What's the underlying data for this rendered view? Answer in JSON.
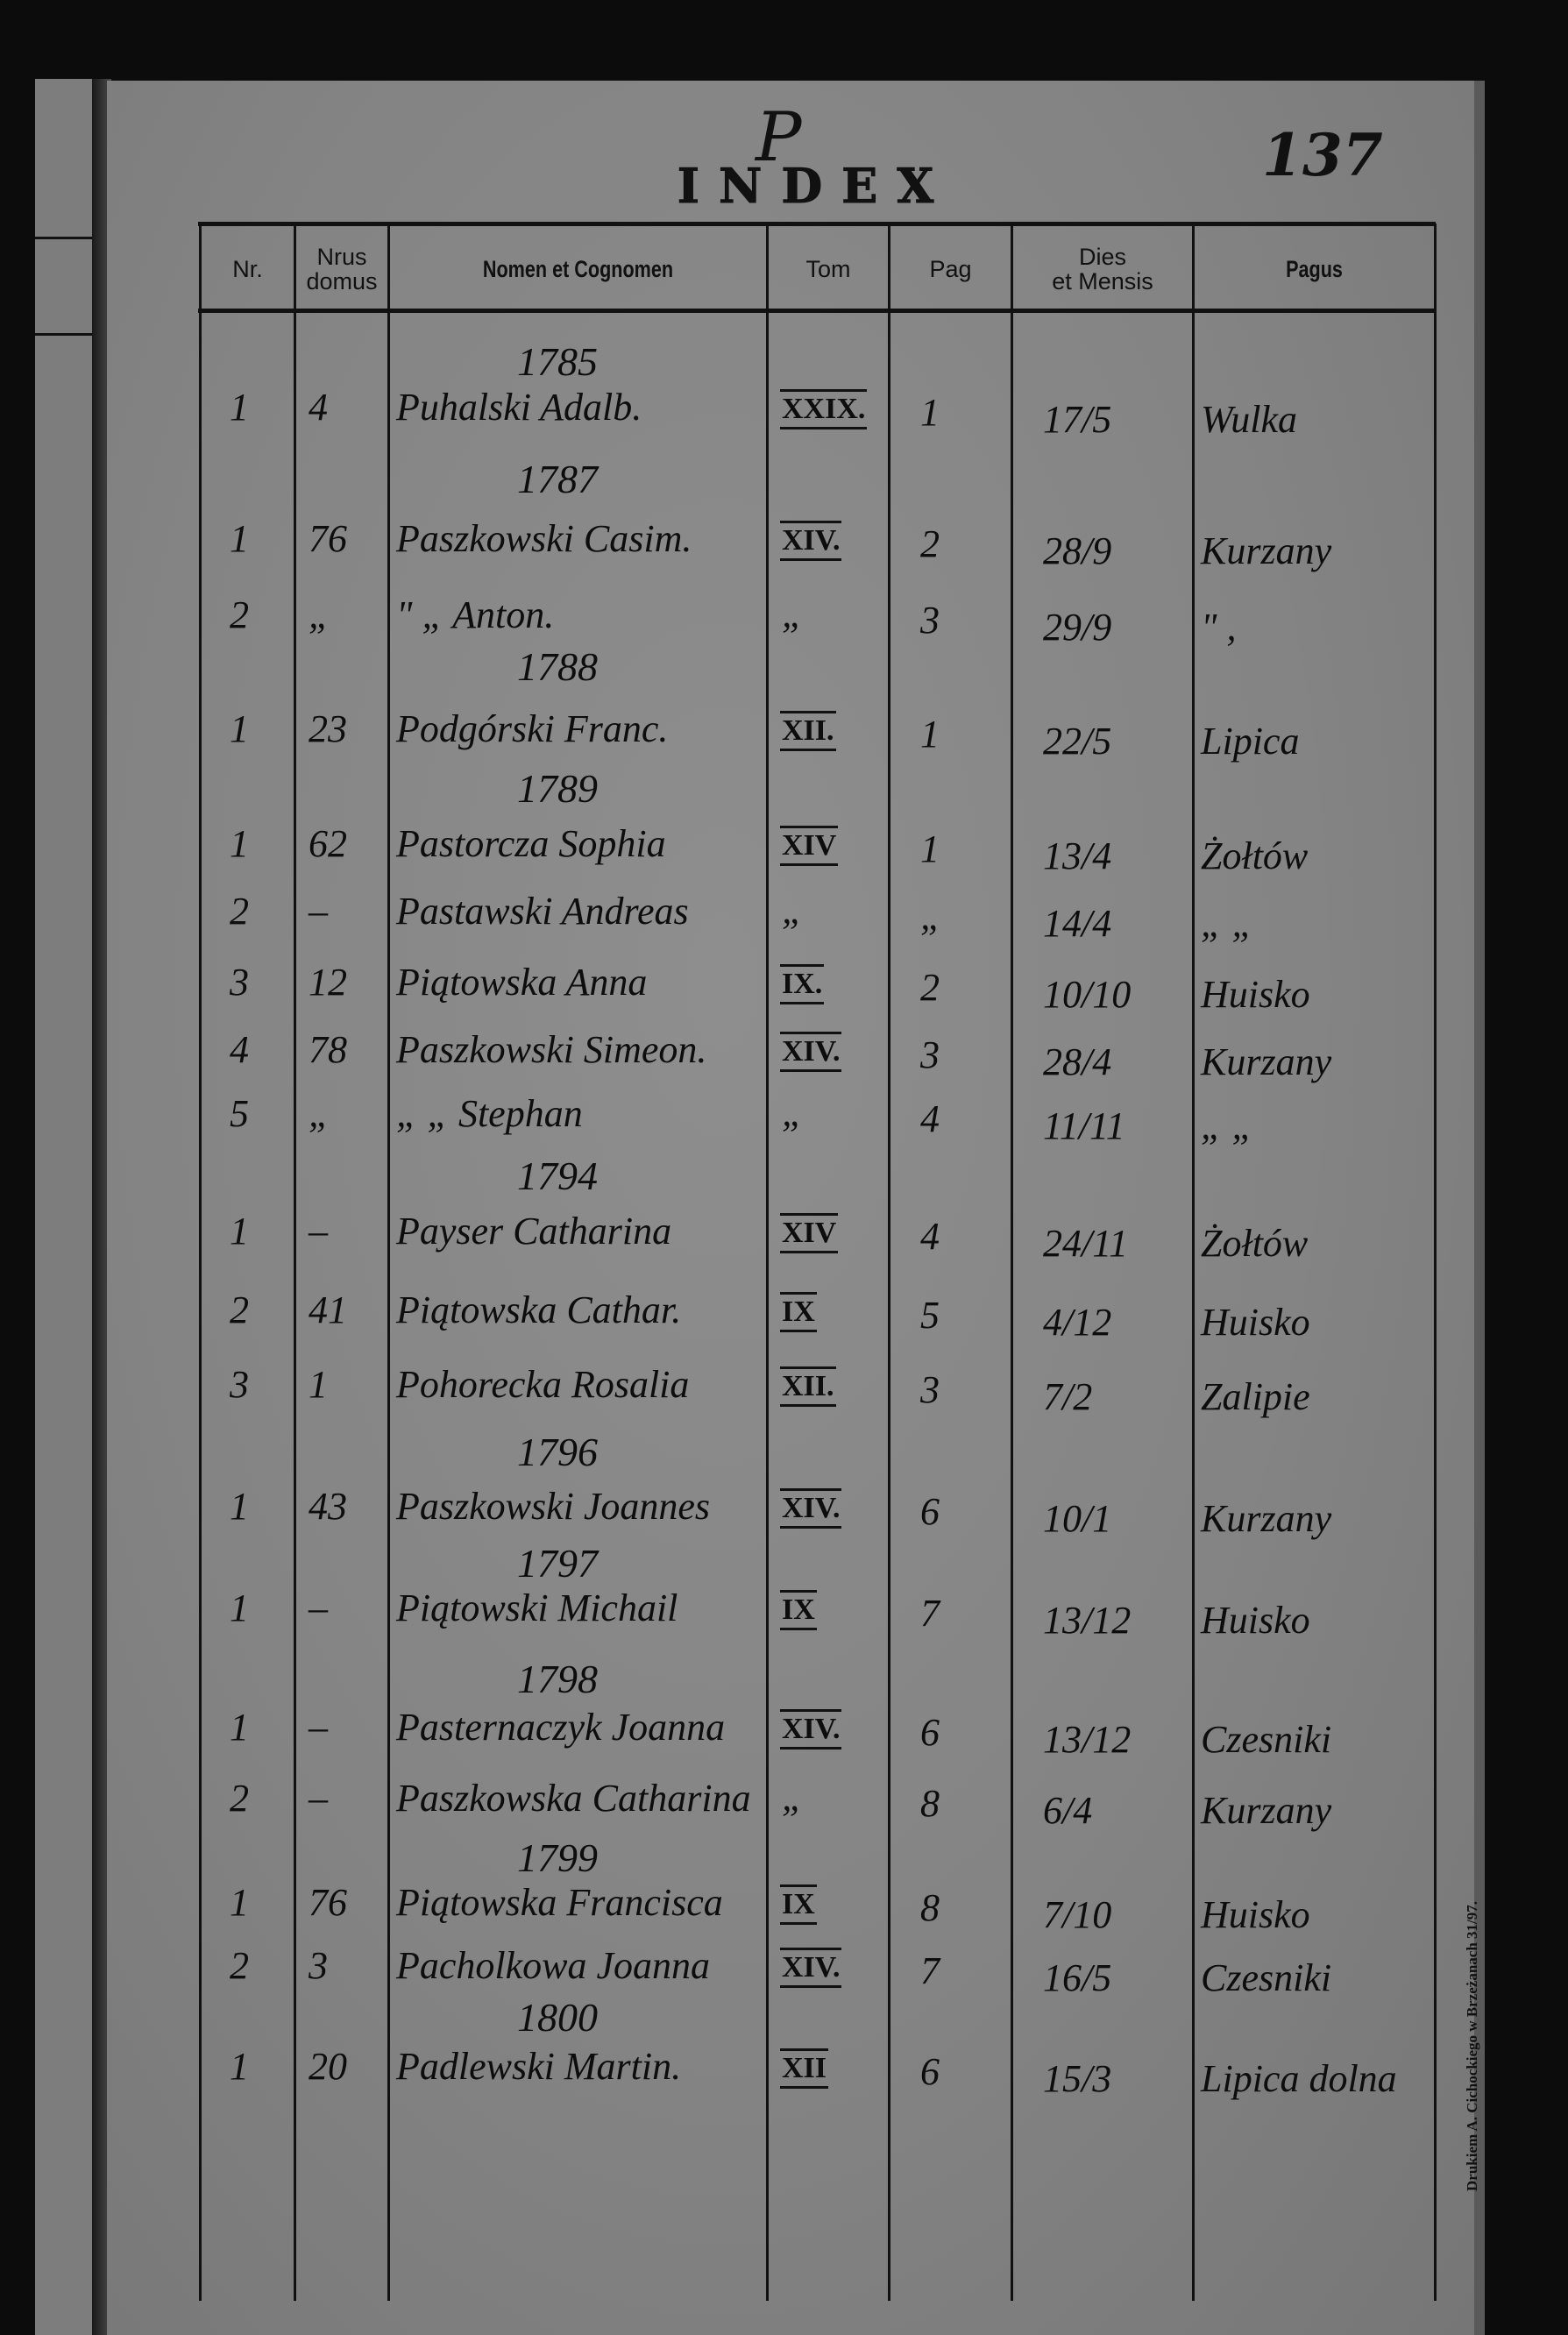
{
  "document": {
    "letter": "P",
    "title": "INDEX",
    "page_number": "137",
    "imprint": "Drukiem A. Cichockiego w Brzeżanach 31/97.",
    "ink_color": "#111111",
    "paper_color": "#858585"
  },
  "headers": {
    "nr": "Nr.",
    "domus_1": "Nrus",
    "domus_2": "domus",
    "nomen": "Nomen et Cognomen",
    "tom": "Tom",
    "pag": "Pag",
    "dies_1": "Dies",
    "dies_2": "et Mensis",
    "pagus": "Pagus"
  },
  "groups": [
    {
      "year": "1785",
      "entries": [
        {
          "nr": "1",
          "domus": "4",
          "name": "Puhalski Adalb.",
          "tom": "XXIX.",
          "pag": "1",
          "dies": "17/5",
          "pagus": "Wulka"
        }
      ]
    },
    {
      "year": "1787",
      "entries": [
        {
          "nr": "1",
          "domus": "76",
          "name": "Paszkowski Casim.",
          "tom": "XIV.",
          "pag": "2",
          "dies": "28/9",
          "pagus": "Kurzany"
        },
        {
          "nr": "2",
          "domus": "„",
          "name": "\"    „   Anton.",
          "tom": "„",
          "pag": "3",
          "dies": "29/9",
          "pagus": "\"      ,"
        }
      ]
    },
    {
      "year": "1788",
      "entries": [
        {
          "nr": "1",
          "domus": "23",
          "name": "Podgórski Franc.",
          "tom": "XII.",
          "pag": "1",
          "dies": "22/5",
          "pagus": "Lipica"
        }
      ]
    },
    {
      "year": "1789",
      "entries": [
        {
          "nr": "1",
          "domus": "62",
          "name": "Pastorcza Sophia",
          "tom": "XIV",
          "pag": "1",
          "dies": "13/4",
          "pagus": "Żołtów"
        },
        {
          "nr": "2",
          "domus": "–",
          "name": "Pastawski Andreas",
          "tom": "„",
          "pag": "„",
          "dies": "14/4",
          "pagus": "„    „"
        },
        {
          "nr": "3",
          "domus": "12",
          "name": "Piątowska Anna",
          "tom": "IX.",
          "pag": "2",
          "dies": "10/10",
          "pagus": "Huisko"
        },
        {
          "nr": "4",
          "domus": "78",
          "name": "Paszkowski Simeon.",
          "tom": "XIV.",
          "pag": "3",
          "dies": "28/4",
          "pagus": "Kurzany"
        },
        {
          "nr": "5",
          "domus": "„",
          "name": "„     „     Stephan",
          "tom": "„",
          "pag": "4",
          "dies": "11/11",
          "pagus": "„    „"
        }
      ]
    },
    {
      "year": "1794",
      "entries": [
        {
          "nr": "1",
          "domus": "–",
          "name": "Payser Catharina",
          "tom": "XIV",
          "pag": "4",
          "dies": "24/11",
          "pagus": "Żołtów"
        },
        {
          "nr": "2",
          "domus": "41",
          "name": "Piątowska Cathar.",
          "tom": "IX",
          "pag": "5",
          "dies": "4/12",
          "pagus": "Huisko"
        },
        {
          "nr": "3",
          "domus": "1",
          "name": "Pohorecka Rosalia",
          "tom": "XII.",
          "pag": "3",
          "dies": "7/2",
          "pagus": "Zalipie"
        }
      ]
    },
    {
      "year": "1796",
      "entries": [
        {
          "nr": "1",
          "domus": "43",
          "name": "Paszkowski Joannes",
          "tom": "XIV.",
          "pag": "6",
          "dies": "10/1",
          "pagus": "Kurzany"
        }
      ]
    },
    {
      "year": "1797",
      "entries": [
        {
          "nr": "1",
          "domus": "–",
          "name": "Piątowski Michail",
          "tom": "IX",
          "pag": "7",
          "dies": "13/12",
          "pagus": "Huisko"
        }
      ]
    },
    {
      "year": "1798",
      "entries": [
        {
          "nr": "1",
          "domus": "–",
          "name": "Pasternaczyk Joanna",
          "tom": "XIV.",
          "pag": "6",
          "dies": "13/12",
          "pagus": "Czesniki"
        },
        {
          "nr": "2",
          "domus": "–",
          "name": "Paszkowska Catharina",
          "tom": "„",
          "pag": "8",
          "dies": "6/4",
          "pagus": "Kurzany"
        }
      ]
    },
    {
      "year": "1799",
      "entries": [
        {
          "nr": "1",
          "domus": "76",
          "name": "Piątowska Francisca",
          "tom": "IX",
          "pag": "8",
          "dies": "7/10",
          "pagus": "Huisko"
        },
        {
          "nr": "2",
          "domus": "3",
          "name": "Pacholkowa Joanna",
          "tom": "XIV.",
          "pag": "7",
          "dies": "16/5",
          "pagus": "Czesniki"
        }
      ]
    },
    {
      "year": "1800",
      "entries": [
        {
          "nr": "1",
          "domus": "20",
          "name": "Padlewski Martin.",
          "tom": "XII",
          "pag": "6",
          "dies": "15/3",
          "pagus": "Lipica dolna"
        }
      ]
    }
  ]
}
